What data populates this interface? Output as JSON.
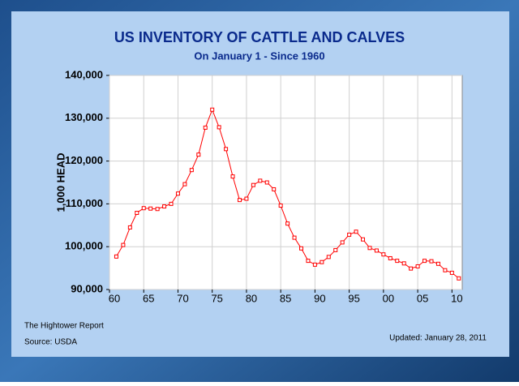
{
  "chart_data": {
    "type": "line",
    "title": "US INVENTORY OF CATTLE AND CALVES",
    "subtitle": "On January 1 - Since 1960",
    "y_label": "1,000 HEAD",
    "x": [
      1961,
      1962,
      1963,
      1964,
      1965,
      1966,
      1967,
      1968,
      1969,
      1970,
      1971,
      1972,
      1973,
      1974,
      1975,
      1976,
      1977,
      1978,
      1979,
      1980,
      1981,
      1982,
      1983,
      1984,
      1985,
      1986,
      1987,
      1988,
      1989,
      1990,
      1991,
      1992,
      1993,
      1994,
      1995,
      1996,
      1997,
      1998,
      1999,
      2000,
      2001,
      2002,
      2003,
      2004,
      2005,
      2006,
      2007,
      2008,
      2009,
      2010,
      2011
    ],
    "series": [
      {
        "name": "Cattle and calves",
        "color": "#ff0000",
        "values": [
          97700,
          100400,
          104500,
          107900,
          109000,
          108900,
          108800,
          109400,
          110000,
          112400,
          114600,
          117900,
          121500,
          127800,
          132000,
          127900,
          122800,
          116400,
          110900,
          111200,
          114400,
          115400,
          115000,
          113400,
          109600,
          105400,
          102100,
          99600,
          96700,
          95800,
          96400,
          97600,
          99200,
          101000,
          102800,
          103500,
          101700,
          99700,
          99100,
          98200,
          97300,
          96700,
          96100,
          94900,
          95400,
          96700,
          96600,
          96000,
          94500,
          93900,
          92600
        ]
      }
    ],
    "xlim": [
      1960,
      2011.5
    ],
    "ylim": [
      90000,
      140000
    ],
    "xticks": [
      {
        "value": 1960,
        "label": "60"
      },
      {
        "value": 1965,
        "label": "65"
      },
      {
        "value": 1970,
        "label": "70"
      },
      {
        "value": 1975,
        "label": "75"
      },
      {
        "value": 1980,
        "label": "80"
      },
      {
        "value": 1985,
        "label": "85"
      },
      {
        "value": 1990,
        "label": "90"
      },
      {
        "value": 1995,
        "label": "95"
      },
      {
        "value": 2000,
        "label": "00"
      },
      {
        "value": 2005,
        "label": "05"
      },
      {
        "value": 2010,
        "label": "10"
      }
    ],
    "yticks": [
      {
        "value": 90000,
        "label": "90,000"
      },
      {
        "value": 100000,
        "label": "100,000"
      },
      {
        "value": 110000,
        "label": "110,000"
      },
      {
        "value": 120000,
        "label": "120,000"
      },
      {
        "value": 130000,
        "label": "130,000"
      },
      {
        "value": 140000,
        "label": "140,000"
      }
    ],
    "grid": true
  },
  "footer": {
    "report": "The Hightower Report",
    "source": "Source: USDA",
    "updated": "Updated: January 28, 2011"
  }
}
